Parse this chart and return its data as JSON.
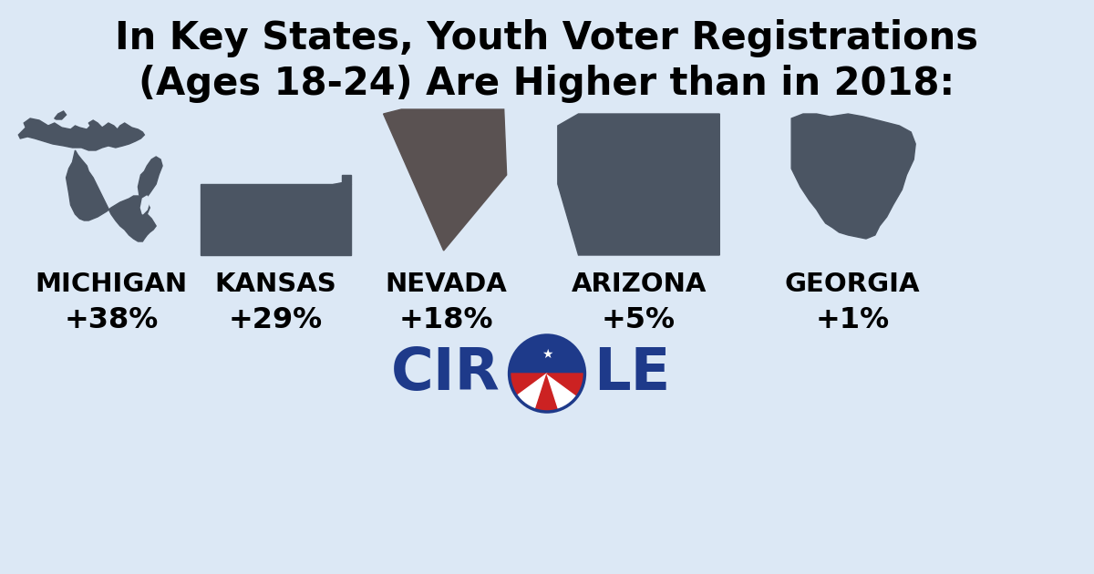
{
  "title_line1": "In Key States, Youth Voter Registrations",
  "title_line2": "(Ages 18-24) Are Higher than in 2018:",
  "background_color": "#dce8f5",
  "state_color_dark": "#4b5563",
  "state_color_nevada": "#5a5252",
  "states": [
    "MICHIGAN",
    "KANSAS",
    "NEVADA",
    "ARIZONA",
    "GEORGIA"
  ],
  "values": [
    "+38%",
    "+29%",
    "+18%",
    "+5%",
    "+1%"
  ],
  "state_centers_x": [
    1.15,
    3.05,
    5.05,
    7.05,
    9.55
  ],
  "title_fontsize": 30,
  "label_fontsize": 21,
  "value_fontsize": 23,
  "circle_blue": "#1e3a8a",
  "circle_red": "#cc2222",
  "logo_fontsize": 46
}
